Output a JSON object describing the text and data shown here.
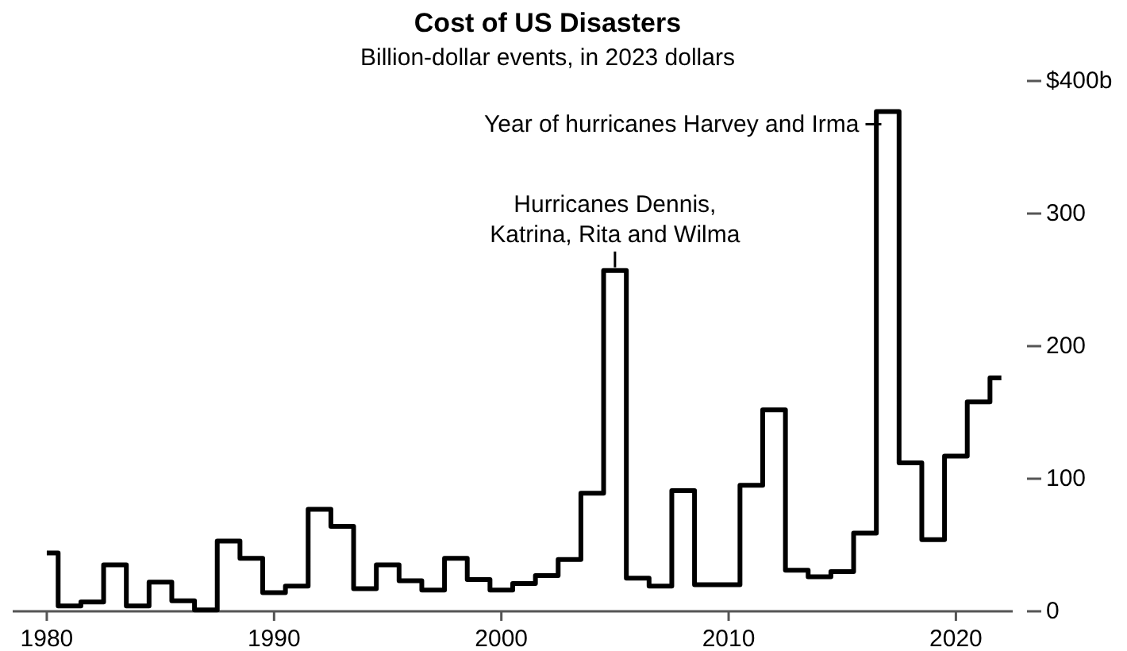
{
  "chart_data": {
    "type": "step",
    "title": "Cost of US Disasters",
    "subtitle": "Billion-dollar events, in 2023 dollars",
    "x": [
      1980,
      1981,
      1982,
      1983,
      1984,
      1985,
      1986,
      1987,
      1988,
      1989,
      1990,
      1991,
      1992,
      1993,
      1994,
      1995,
      1996,
      1997,
      1998,
      1999,
      2000,
      2001,
      2002,
      2003,
      2004,
      2005,
      2006,
      2007,
      2008,
      2009,
      2010,
      2011,
      2012,
      2013,
      2014,
      2015,
      2016,
      2017,
      2018,
      2019,
      2020,
      2021,
      2022
    ],
    "series": [
      {
        "color": "#000000",
        "values": [
          44,
          4,
          7,
          35,
          4,
          22,
          8,
          1,
          53,
          40,
          14,
          19,
          77,
          64,
          17,
          35,
          23,
          16,
          40,
          24,
          16,
          21,
          27,
          39,
          89,
          257,
          25,
          19,
          91,
          20,
          20,
          95,
          152,
          31,
          26,
          30,
          59,
          377,
          112,
          54,
          117,
          158,
          176
        ]
      }
    ],
    "xlim": [
      1978.5,
      2022.5
    ],
    "xticks": [
      1980,
      1990,
      2000,
      2010,
      2020
    ],
    "ylim": [
      0,
      400
    ],
    "yticks": [
      0,
      100,
      200,
      300,
      {
        "value": 400,
        "label": "$400b"
      }
    ],
    "grid": false,
    "annotations": [
      {
        "text": "Year of hurricanes Harvey and Irma",
        "x": 2017,
        "y": 377
      },
      {
        "text": "Hurricanes Dennis,\nKatrina, Rita and Wilma",
        "x": 2005,
        "y": 257
      }
    ]
  }
}
